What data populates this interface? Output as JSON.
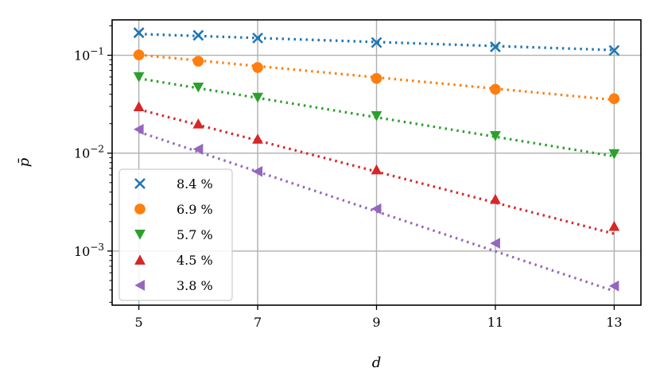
{
  "chart_data": {
    "type": "line",
    "title": "",
    "xlabel": "d",
    "ylabel": "p̄",
    "x": [
      5,
      6,
      7,
      9,
      11,
      13
    ],
    "xlim": [
      4.55,
      13.45
    ],
    "ylim": [
      0.00028,
      0.23
    ],
    "yscale": "log",
    "xticks": [
      5,
      7,
      9,
      11,
      13
    ],
    "xtick_labels": [
      "5",
      "7",
      "9",
      "11",
      "13"
    ],
    "yticks": [
      0.001,
      0.01,
      0.1
    ],
    "ytick_labels": [
      {
        "base": "10",
        "exp": "−3"
      },
      {
        "base": "10",
        "exp": "−2"
      },
      {
        "base": "10",
        "exp": "−1"
      }
    ],
    "grid": true,
    "legend_position": "lower-left",
    "series": [
      {
        "name": "8.4 %",
        "marker": "x",
        "color": "#1f77b4",
        "values": [
          0.17,
          0.16,
          0.15,
          0.135,
          0.122,
          0.112
        ],
        "fit": [
          0.165,
          0.113
        ]
      },
      {
        "name": "6.9 %",
        "marker": "circle",
        "color": "#ff7f0e",
        "values": [
          0.101,
          0.087,
          0.075,
          0.058,
          0.045,
          0.036
        ],
        "fit": [
          0.101,
          0.035
        ]
      },
      {
        "name": "5.7 %",
        "marker": "triangle-down",
        "color": "#2ca02c",
        "values": [
          0.06,
          0.047,
          0.037,
          0.024,
          0.015,
          0.0098
        ],
        "fit": [
          0.058,
          0.0093
        ]
      },
      {
        "name": "4.5 %",
        "marker": "triangle-up",
        "color": "#d62728",
        "values": [
          0.03,
          0.02,
          0.014,
          0.0068,
          0.0034,
          0.0018
        ],
        "fit": [
          0.028,
          0.0015
        ]
      },
      {
        "name": "3.8 %",
        "marker": "triangle-left",
        "color": "#9467bd",
        "values": [
          0.0175,
          0.011,
          0.0065,
          0.0027,
          0.0012,
          0.00044
        ],
        "fit": [
          0.0165,
          0.00039
        ]
      }
    ]
  }
}
